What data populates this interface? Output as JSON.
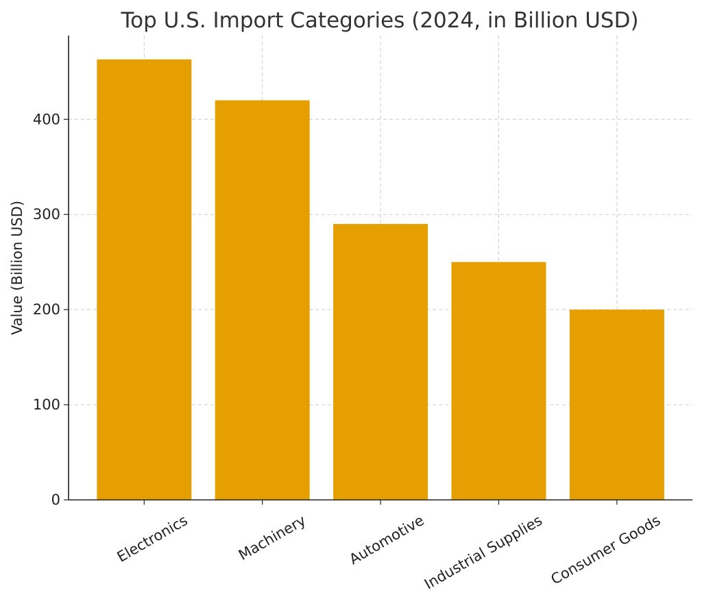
{
  "chart_data": {
    "type": "bar",
    "title": "Top U.S. Import Categories (2024, in Billion USD)",
    "xlabel": "",
    "ylabel": "Value (Billion USD)",
    "categories": [
      "Electronics",
      "Machinery",
      "Automotive",
      "Industrial Supplies",
      "Consumer Goods"
    ],
    "values": [
      463,
      420,
      290,
      250,
      200
    ],
    "ylim": [
      0,
      488
    ],
    "yticks": [
      0,
      100,
      200,
      300,
      400
    ],
    "grid": true,
    "bar_color": "#E69F00",
    "legend": null
  }
}
